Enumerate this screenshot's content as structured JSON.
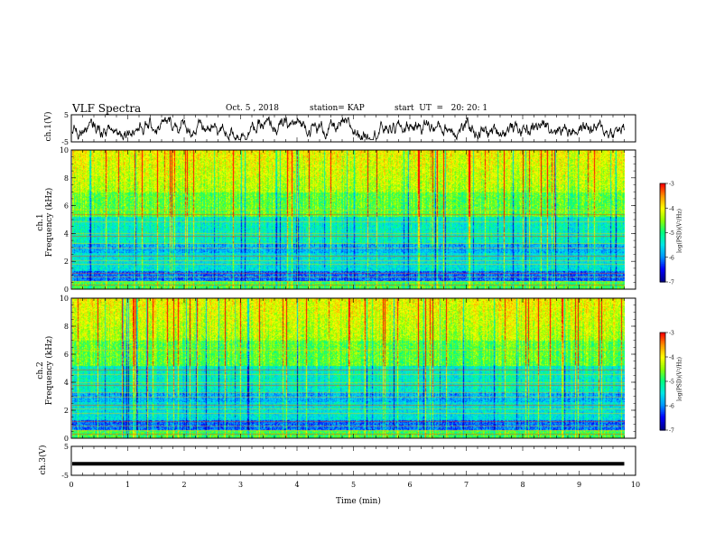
{
  "header": {
    "title": "VLF Spectra",
    "date": "Oct. 5 , 2018",
    "station": "station= KAP",
    "start": "start  UT  =   20: 20: 1"
  },
  "chart_data": [
    {
      "type": "line",
      "panel": "ch1-waveform",
      "ylabel": "ch.1(V)",
      "ylim": [
        -5,
        5
      ],
      "yticks": [
        -5,
        5
      ],
      "xlim": [
        0,
        10
      ],
      "x_end": 9.8,
      "approx_amplitude_V": 2.0,
      "color": "#000000"
    },
    {
      "type": "heatmap",
      "panel": "ch1-spectrogram",
      "ylabel": "ch.1\nFrequency  (kHz)",
      "ylim": [
        0,
        10
      ],
      "yticks": [
        0,
        2,
        4,
        6,
        8,
        10
      ],
      "xlim": [
        0,
        10
      ],
      "x_end": 9.8,
      "colorbar": {
        "label": "log(PSD)(V²/Hz)",
        "range": [
          -7,
          -3
        ],
        "ticks": [
          -3,
          -4,
          -5,
          -6,
          -7
        ]
      },
      "lines_kHz": [
        0.3,
        0.6,
        0.9,
        1.2,
        1.8,
        2.1,
        2.4,
        3.0,
        3.3,
        3.8,
        4.0,
        4.9,
        5.4,
        5.7
      ]
    },
    {
      "type": "heatmap",
      "panel": "ch2-spectrogram",
      "ylabel": "ch.2\nFrequency  (kHz)",
      "ylim": [
        0,
        10
      ],
      "yticks": [
        0,
        2,
        4,
        6,
        8,
        10
      ],
      "xlim": [
        0,
        10
      ],
      "x_end": 9.8,
      "colorbar": {
        "label": "log(PSD)(V²/Hz)",
        "range": [
          -7,
          -3
        ],
        "ticks": [
          -3,
          -4,
          -5,
          -6,
          -7
        ]
      },
      "lines_kHz": [
        0.3,
        0.6,
        0.9,
        1.2,
        1.8,
        2.1,
        2.4,
        3.0,
        3.3,
        3.8,
        4.0,
        4.6,
        4.9,
        6.3
      ]
    },
    {
      "type": "line",
      "panel": "ch3-waveform",
      "ylabel": "ch.3(V)",
      "ylim": [
        -5,
        5
      ],
      "yticks": [
        -5,
        5
      ],
      "xlim": [
        0,
        10
      ],
      "x_end": 9.8,
      "constant_value_V": -1.0,
      "color": "#000000"
    }
  ],
  "xaxis": {
    "label": "Time  (min)",
    "ticks": [
      0,
      1,
      2,
      3,
      4,
      5,
      6,
      7,
      8,
      9,
      10
    ]
  },
  "colormap": [
    "#00008c",
    "#0000ff",
    "#0096ff",
    "#00e6e6",
    "#00ff80",
    "#8cff00",
    "#ffff00",
    "#ff9600",
    "#ff0000",
    "#ffffff"
  ]
}
